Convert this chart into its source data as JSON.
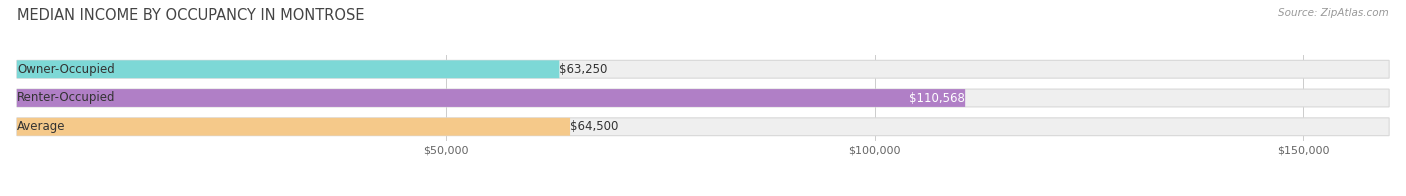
{
  "title": "MEDIAN INCOME BY OCCUPANCY IN MONTROSE",
  "source": "Source: ZipAtlas.com",
  "categories": [
    "Owner-Occupied",
    "Renter-Occupied",
    "Average"
  ],
  "values": [
    63250,
    110568,
    64500
  ],
  "bar_colors": [
    "#7dd8d6",
    "#b07fc6",
    "#f5c98a"
  ],
  "bar_bg_color": "#efefef",
  "bar_edge_color": "#d8d8d8",
  "value_labels": [
    "$63,250",
    "$110,568",
    "$64,500"
  ],
  "value_label_inside": [
    false,
    true,
    false
  ],
  "xlim_max": 160000,
  "xticks": [
    50000,
    100000,
    150000
  ],
  "xtick_labels": [
    "$50,000",
    "$100,000",
    "$150,000"
  ],
  "title_fontsize": 10.5,
  "source_fontsize": 7.5,
  "cat_label_fontsize": 8.5,
  "val_label_fontsize": 8.5,
  "bar_height": 0.62,
  "bar_gap": 0.1,
  "figsize": [
    14.06,
    1.96
  ],
  "dpi": 100
}
